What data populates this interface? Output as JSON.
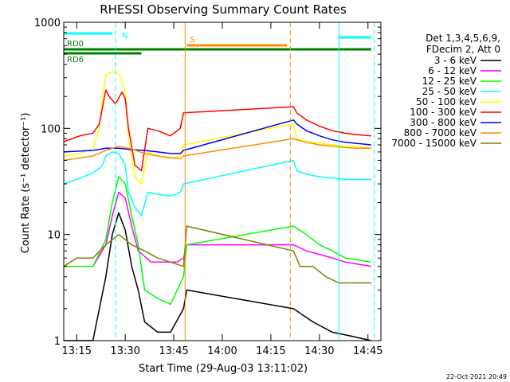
{
  "chart_data": {
    "type": "line",
    "title": "RHESSI Observing Summary Count Rates",
    "xlabel": "Start Time (29-Aug-03 13:11:02)",
    "ylabel": "Count Rate (s⁻¹ detector⁻¹)",
    "y_scale": "log",
    "ylim": [
      1,
      1000
    ],
    "xlim": [
      "13:11",
      "14:49"
    ],
    "x_ticks": [
      "13:15",
      "13:30",
      "13:45",
      "14:00",
      "14:15",
      "14:30",
      "14:45"
    ],
    "y_ticks": [
      "1",
      "10",
      "100",
      "1000"
    ],
    "legend_header": [
      "Det 1,3,4,5,6,9,",
      "FDecim 2, Att 0"
    ],
    "legend_position": "right",
    "timestamp": "22-Oct-2021 20:49",
    "series": [
      {
        "name": "3 - 6 keV",
        "color": "#000000",
        "x": [
          "13:11",
          "13:20",
          "13:24",
          "13:26",
          "13:28",
          "13:30",
          "13:32",
          "13:34",
          "13:36",
          "13:40",
          "13:44",
          "13:48",
          "13:49",
          "14:22",
          "14:28",
          "14:34",
          "14:40",
          "14:46"
        ],
        "y": [
          1,
          1,
          4,
          10,
          16,
          11,
          5,
          3,
          1.5,
          1.2,
          1.2,
          2,
          3,
          2,
          1.5,
          1.2,
          1.1,
          1
        ]
      },
      {
        "name": "6 - 12 keV",
        "color": "#ff00ff",
        "x": [
          "13:11",
          "13:20",
          "13:24",
          "13:26",
          "13:28",
          "13:30",
          "13:32",
          "13:34",
          "13:38",
          "13:42",
          "13:46",
          "13:48",
          "13:49",
          "14:22",
          "14:26",
          "14:30",
          "14:34",
          "14:38",
          "14:46"
        ],
        "y": [
          5,
          5,
          8,
          15,
          25,
          22,
          12,
          7,
          5.5,
          5.5,
          5.5,
          6,
          8,
          8,
          7,
          6.5,
          6,
          5.5,
          5
        ]
      },
      {
        "name": "12 - 25 keV",
        "color": "#00ff00",
        "x": [
          "13:11",
          "13:20",
          "13:24",
          "13:26",
          "13:28",
          "13:30",
          "13:32",
          "13:34",
          "13:36",
          "13:40",
          "13:44",
          "13:48",
          "13:49",
          "14:22",
          "14:26",
          "14:30",
          "14:34",
          "14:38",
          "14:46"
        ],
        "y": [
          5,
          5,
          9,
          20,
          35,
          30,
          15,
          8,
          3,
          2.5,
          2.2,
          4,
          8,
          12,
          10,
          8,
          7,
          6,
          5.5
        ]
      },
      {
        "name": "25 - 50 keV",
        "color": "#00ffff",
        "x": [
          "13:11",
          "13:16",
          "13:20",
          "13:22",
          "13:23",
          "13:24",
          "13:26",
          "13:28",
          "13:30",
          "13:31",
          "13:33",
          "13:35",
          "13:37",
          "13:40",
          "13:44",
          "13:47",
          "13:48",
          "14:22",
          "14:23",
          "14:26",
          "14:30",
          "14:34",
          "14:38",
          "14:42",
          "14:46"
        ],
        "y": [
          30,
          34,
          38,
          42,
          45,
          55,
          60,
          58,
          45,
          25,
          18,
          15,
          25,
          24,
          23,
          25,
          30,
          50,
          40,
          37,
          35,
          34,
          33,
          33,
          33
        ]
      },
      {
        "name": "50 - 100 keV",
        "color": "#ffff00",
        "x": [
          "13:11",
          "13:16",
          "13:20",
          "13:22",
          "13:23",
          "13:24",
          "13:26",
          "13:28",
          "13:30",
          "13:31",
          "13:33",
          "13:35",
          "13:37",
          "13:40",
          "13:44",
          "13:47",
          "13:48",
          "14:22",
          "14:23",
          "14:26",
          "14:30",
          "14:34",
          "14:38",
          "14:42",
          "14:46"
        ],
        "y": [
          55,
          58,
          65,
          100,
          200,
          320,
          340,
          330,
          230,
          80,
          35,
          30,
          60,
          55,
          52,
          55,
          70,
          110,
          80,
          75,
          72,
          70,
          68,
          67,
          66
        ]
      },
      {
        "name": "100 - 300 keV",
        "color": "#ff0000",
        "x": [
          "13:11",
          "13:16",
          "13:20",
          "13:22",
          "13:23",
          "13:24",
          "13:25",
          "13:27",
          "13:29",
          "13:30",
          "13:31",
          "13:33",
          "13:35",
          "13:37",
          "13:40",
          "13:44",
          "13:47",
          "13:48",
          "14:22",
          "14:23",
          "14:26",
          "14:30",
          "14:34",
          "14:38",
          "14:42",
          "14:46"
        ],
        "y": [
          75,
          85,
          90,
          110,
          160,
          230,
          200,
          170,
          220,
          190,
          100,
          45,
          40,
          100,
          95,
          85,
          100,
          140,
          160,
          140,
          120,
          105,
          95,
          90,
          87,
          85
        ]
      },
      {
        "name": "300 - 800 keV",
        "color": "#0000ff",
        "x": [
          "13:11",
          "13:20",
          "13:24",
          "13:28",
          "13:32",
          "13:36",
          "13:40",
          "13:44",
          "13:47",
          "13:48",
          "14:22",
          "14:23",
          "14:26",
          "14:30",
          "14:34",
          "14:38",
          "14:42",
          "14:46"
        ],
        "y": [
          60,
          62,
          65,
          65,
          63,
          62,
          60,
          58,
          58,
          62,
          120,
          110,
          95,
          85,
          78,
          74,
          72,
          70
        ]
      },
      {
        "name": "800 - 7000 keV",
        "color": "#ff8c00",
        "x": [
          "13:11",
          "13:20",
          "13:24",
          "13:28",
          "13:32",
          "13:36",
          "13:40",
          "13:44",
          "13:47",
          "13:48",
          "14:22",
          "14:23",
          "14:26",
          "14:30",
          "14:34",
          "14:38",
          "14:42",
          "14:46"
        ],
        "y": [
          50,
          55,
          62,
          68,
          64,
          58,
          55,
          53,
          52,
          55,
          80,
          78,
          74,
          70,
          68,
          66,
          65,
          65
        ]
      },
      {
        "name": "7000 - 15000 keV",
        "color": "#808000",
        "x": [
          "13:11",
          "13:15",
          "13:20",
          "13:24",
          "13:28",
          "13:32",
          "13:36",
          "13:40",
          "13:44",
          "13:48",
          "13:49",
          "14:22",
          "14:24",
          "14:28",
          "14:32",
          "14:36",
          "14:40",
          "14:46"
        ],
        "y": [
          5,
          6,
          6,
          8,
          10,
          8,
          7,
          6,
          5.5,
          5,
          12,
          7,
          5,
          5,
          4,
          3.5,
          3.5,
          3.5
        ]
      }
    ],
    "flags": [
      {
        "label": "",
        "color": "#00ffff",
        "start": "13:11",
        "end": "13:26",
        "label_position": "top"
      },
      {
        "label": "",
        "color": "#00ffff",
        "start": "14:36",
        "end": "14:46",
        "label_position": "top"
      },
      {
        "label": "N",
        "color": "#00ffff",
        "start": "13:28",
        "end": "13:28",
        "label_position": "top"
      },
      {
        "label": "S",
        "color": "#ff8c00",
        "start": "13:49",
        "end": "14:20",
        "label_position": "top"
      },
      {
        "label": "RD0",
        "color": "#008000",
        "start": "13:11",
        "end": "14:46",
        "label_position": "top"
      },
      {
        "label": "RD6",
        "color": "#008000",
        "start": "13:11",
        "end": "13:35",
        "label_position": "bottom"
      }
    ],
    "vlines": [
      {
        "x": "13:27",
        "color": "#00ffff",
        "style": "dashed"
      },
      {
        "x": "13:48.5",
        "color": "#ff8c00",
        "style": "solid"
      },
      {
        "x": "14:21",
        "color": "#ff8c00",
        "style": "dashed"
      },
      {
        "x": "14:36",
        "color": "#00ffff",
        "style": "solid"
      },
      {
        "x": "14:47",
        "color": "#00ffff",
        "style": "dashed"
      }
    ]
  }
}
